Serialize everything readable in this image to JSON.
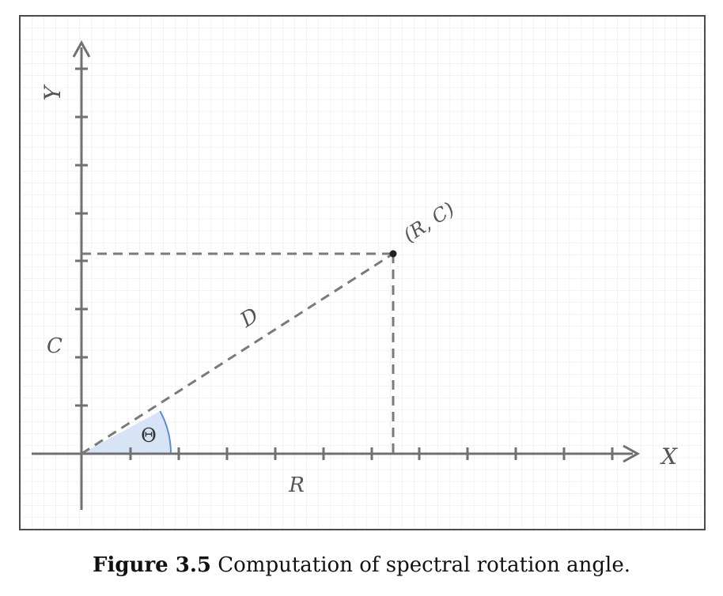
{
  "diagram": {
    "axis_x_label": "X",
    "axis_y_label": "Y",
    "point_label": "(R, C)",
    "hypotenuse_label": "D",
    "horizontal_leg_label": "R",
    "vertical_leg_label": "C",
    "angle_label": "Θ"
  },
  "caption": {
    "figure_number": "Figure 3.5",
    "text": "Computation of spectral rotation angle."
  },
  "colors": {
    "grid": "#e4e4e4",
    "frame": "#4a4a4a",
    "axis": "#707070",
    "dashed": "#7a7a7a",
    "angle_fill": "#d6e4f6",
    "angle_stroke": "#5a8fd8",
    "point": "#222222"
  }
}
